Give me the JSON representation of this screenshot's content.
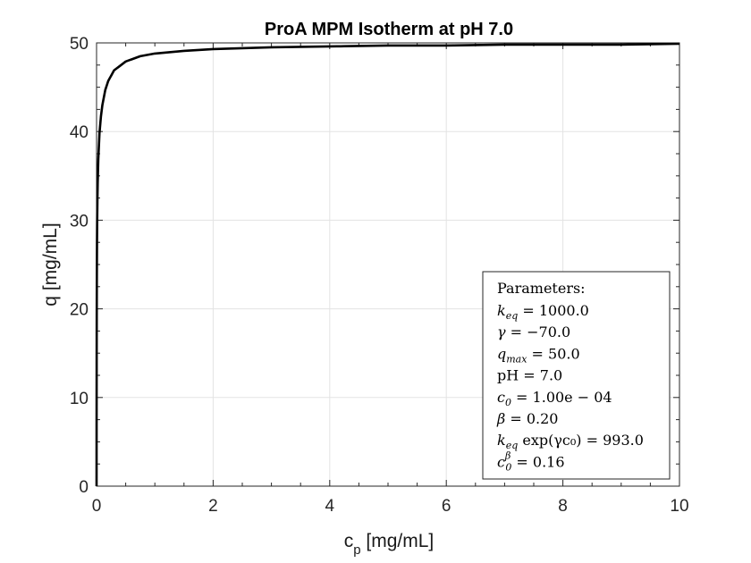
{
  "chart_data": {
    "type": "line",
    "title": "ProA MPM Isotherm at pH 7.0",
    "xlabel": {
      "main": "c",
      "sub": "p",
      "unit": " [mg/mL]"
    },
    "ylabel": "q [mg/mL]",
    "xlim": [
      0,
      10
    ],
    "ylim": [
      0,
      50
    ],
    "xticks": [
      "0",
      "2",
      "4",
      "6",
      "8",
      "10"
    ],
    "yticks": [
      "0",
      "10",
      "20",
      "30",
      "40",
      "50"
    ],
    "grid": true,
    "series_color": "#000000",
    "model": {
      "keq": 1000.0,
      "gamma": -70.0,
      "qmax": 50.0,
      "beta": 0.2
    },
    "x": [
      0,
      0.0005,
      0.001,
      0.002,
      0.003,
      0.005,
      0.0075,
      0.01,
      0.015,
      0.02,
      0.03,
      0.05,
      0.075,
      0.1,
      0.15,
      0.2,
      0.3,
      0.5,
      0.75,
      1.0,
      1.5,
      2.0,
      3.0,
      4.0,
      5.0,
      6.0,
      7.0,
      8.0,
      9.0,
      10.0
    ],
    "y": [
      0,
      5.3,
      9.4,
      15.2,
      19.0,
      23.9,
      27.4,
      29.6,
      32.4,
      34.3,
      36.9,
      39.8,
      41.7,
      43.0,
      44.7,
      45.7,
      46.9,
      47.9,
      48.5,
      48.8,
      49.1,
      49.3,
      49.5,
      49.6,
      49.7,
      49.7,
      49.8,
      49.8,
      49.8,
      49.9
    ],
    "legend": {
      "placement": "bottom-right",
      "header": "Parameters:",
      "lines": [
        {
          "sym": "k",
          "sub": "eq",
          "val": " = 1000.0"
        },
        {
          "sym": "γ",
          "sub": "",
          "val": " = −70.0"
        },
        {
          "sym": "q",
          "sub": "max",
          "val": " = 50.0"
        },
        {
          "sym": "pH",
          "sub": "",
          "val": " = 7.0",
          "upright": true
        },
        {
          "sym": "c",
          "sub": "0",
          "val": " = 1.00e − 04"
        },
        {
          "sym": "β",
          "sub": "",
          "val": " = 0.20"
        },
        {
          "sym": "k",
          "sub": "eq",
          "val": " exp(γc₀) = 993.0"
        },
        {
          "sym": "c",
          "sub": "0",
          "sup": "β",
          "val": " = 0.16"
        }
      ]
    }
  }
}
